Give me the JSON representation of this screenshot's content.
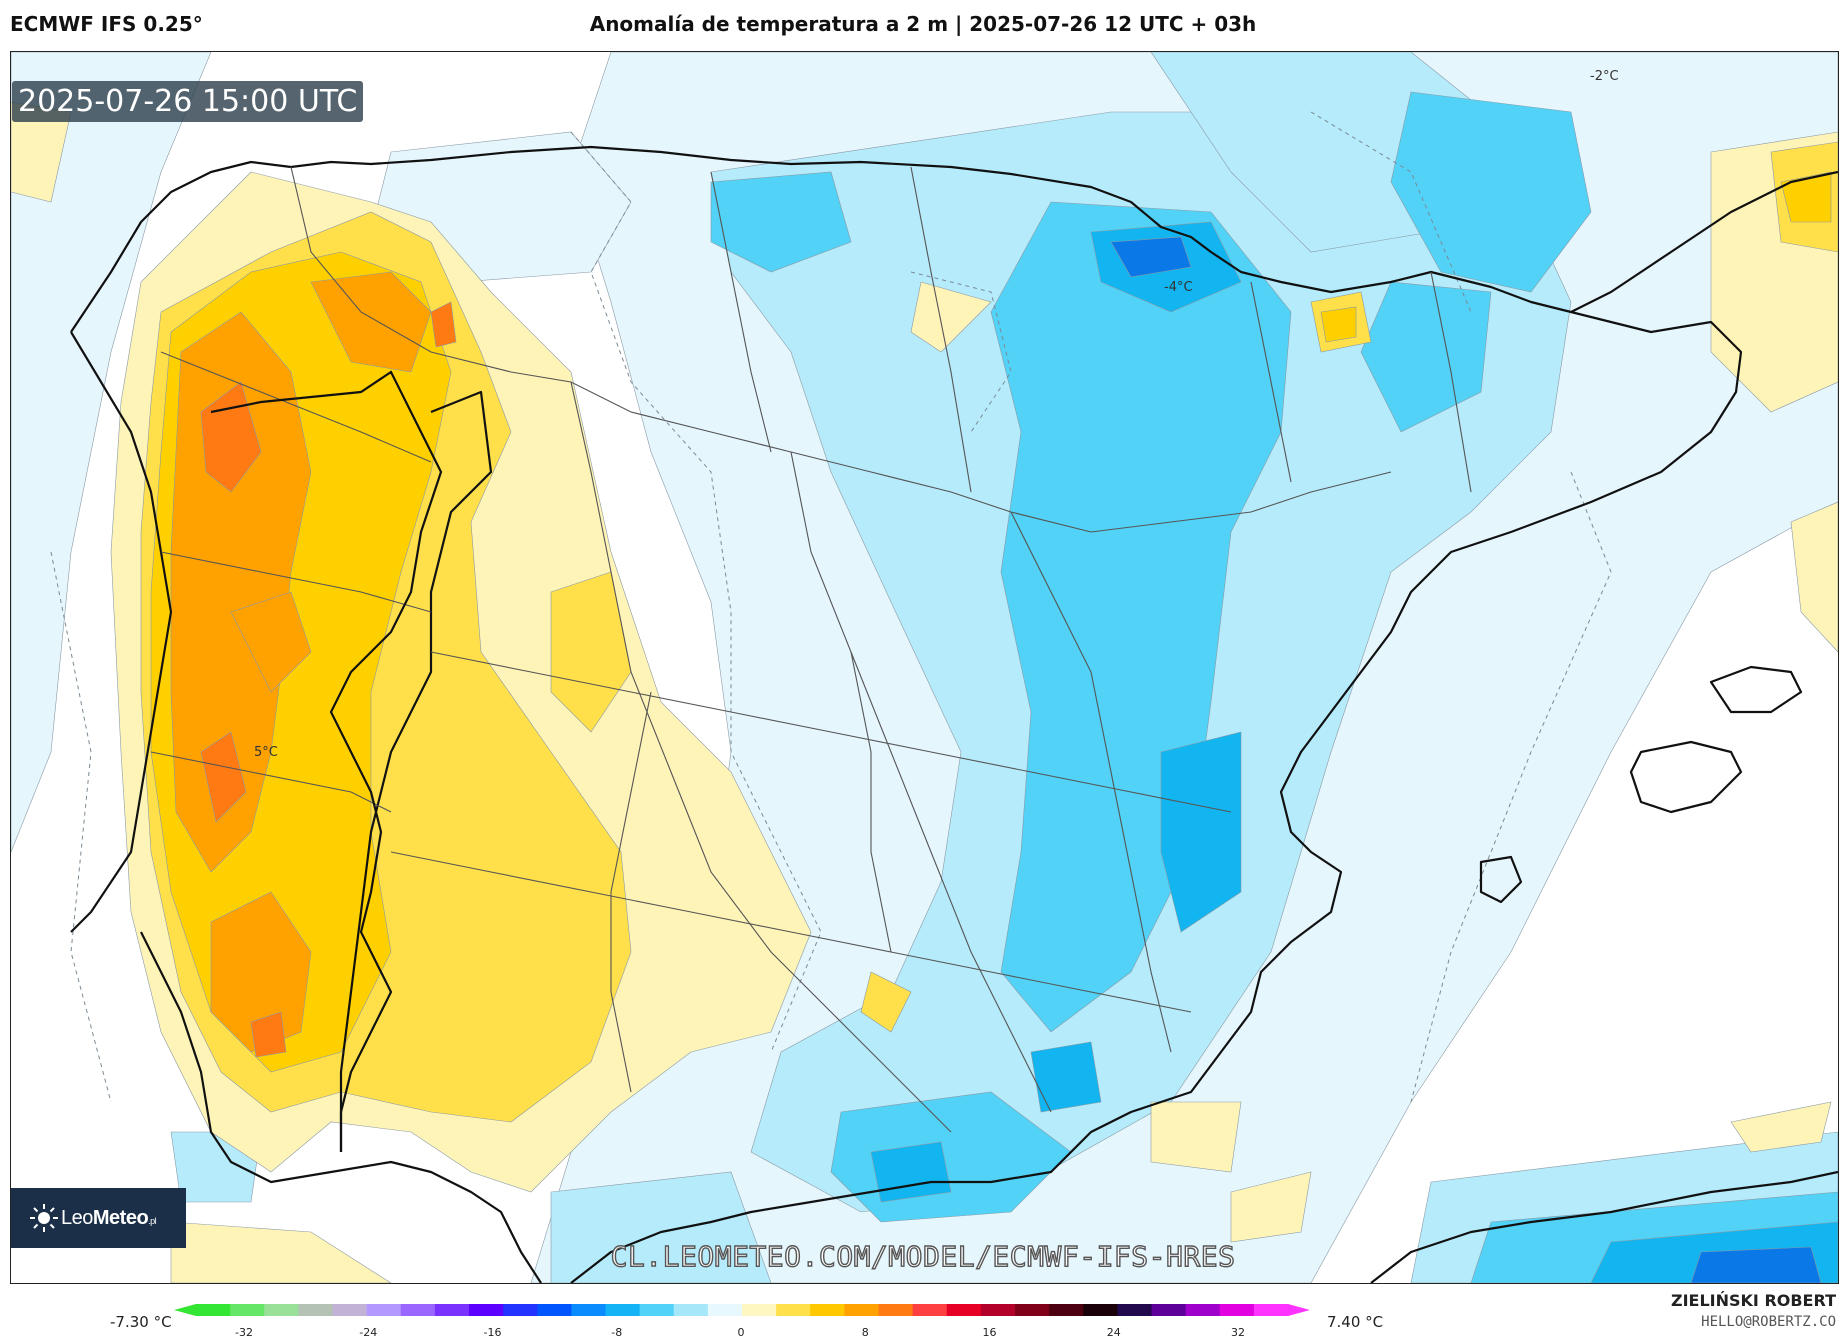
{
  "header": {
    "model": "ECMWF IFS 0.25°",
    "title": "Anomalía de temperatura a 2 m | 2025-07-26 12 UTC + 03h"
  },
  "map": {
    "valid_time": "2025-07-26 15:00 UTC",
    "contour_labels": [
      "5°C",
      "-4°C",
      "-2°C"
    ],
    "watermark": "CL.LEOMETEO.COM/MODEL/ECMWF-IFS-HRES",
    "logo": {
      "name": "LeoMeteo",
      "part1": "Leo",
      "part2": "Meteo",
      "suffix": ".pl"
    },
    "colors": {
      "warm_light": "#fff4b8",
      "warm_mid": "#ffe04a",
      "warm_strong": "#ffd000",
      "warm_deep": "#ffa200",
      "warm_peak": "#ff7a12",
      "cool_light": "#e6f6fd",
      "cool_mid": "#b5ebfb",
      "cool_strong": "#52d2f6",
      "cool_deep": "#12b5ef",
      "cool_peak": "#0a78e6"
    }
  },
  "legend": {
    "min_label": "-7.30 °C",
    "max_label": "7.40 °C",
    "ticks": [
      "-32",
      "-24",
      "-16",
      "-8",
      "0",
      "8",
      "16",
      "24",
      "32"
    ],
    "stops": [
      "#33e633",
      "#66e666",
      "#99e099",
      "#b3c2b3",
      "#c2b3d6",
      "#b399ff",
      "#9966ff",
      "#7a33ff",
      "#5c00ff",
      "#2233ff",
      "#0055ff",
      "#0a8cff",
      "#13b3f5",
      "#52d2f6",
      "#a6e8fa",
      "#e8f8ff",
      "#fff7c2",
      "#ffe04a",
      "#ffc800",
      "#ffa200",
      "#ff7a12",
      "#ff4040",
      "#e60026",
      "#b3002a",
      "#80001a",
      "#4d000f",
      "#1a0008",
      "#22084d",
      "#5c0099",
      "#a000cc",
      "#e000e0",
      "#ff33ff"
    ]
  },
  "credits": {
    "author": "ZIELIŃSKI ROBERT",
    "email": "HELLO@ROBERTZ.CO"
  }
}
